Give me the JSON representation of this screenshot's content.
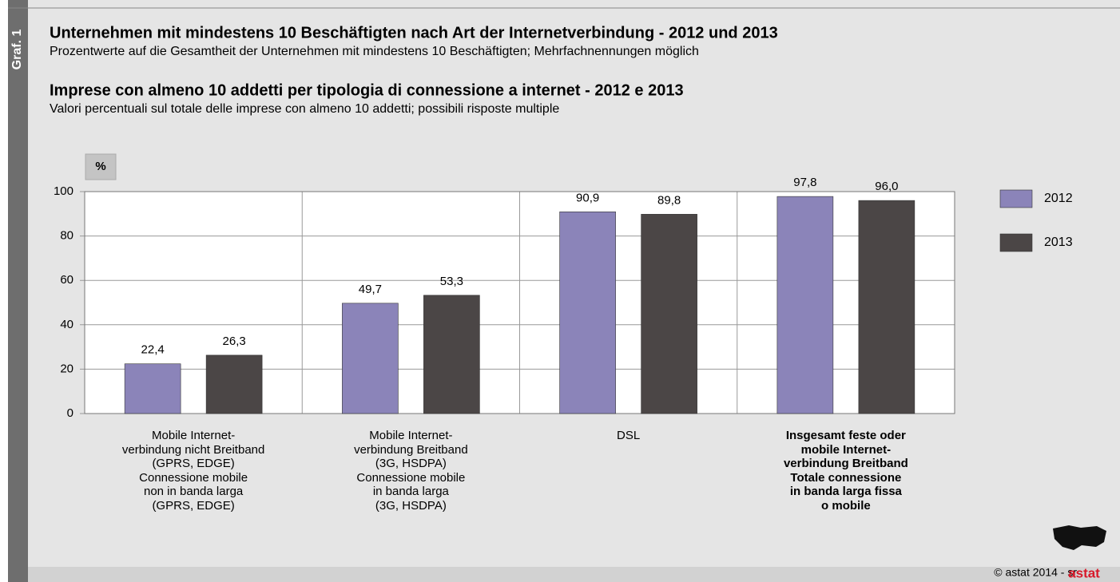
{
  "chart_data": {
    "type": "bar",
    "side_label": "Graf. 1",
    "title": "Unternehmen mit mindestens 10 Beschäftigten nach Art der Internetverbindung - 2012 und 2013",
    "subtitle": "Prozentwerte auf die Gesamtheit der Unternehmen mit mindestens 10 Beschäftigten; Mehrfachnennungen möglich",
    "title2": "Imprese con almeno 10 addetti per tipologia di connessione a internet - 2012 e 2013",
    "subtitle2": "Valori percentuali sul totale delle imprese con almeno 10 addetti; possibili risposte multiple",
    "y_unit": "%",
    "categories": [
      "Mobile Internet-\nverbindung nicht Breitband\n(GPRS, EDGE)\nConnessione mobile\nnon in banda larga\n(GPRS, EDGE)",
      "Mobile Internet-\nverbindung Breitband\n(3G, HSDPA)\nConnessione mobile\nin banda larga\n(3G, HSDPA)",
      "DSL",
      "Insgesamt feste oder\nmobile Internet-\nverbindung Breitband\nTotale connessione\nin banda larga fissa\no mobile"
    ],
    "series": [
      {
        "name": "2012",
        "color": "#8b84b9",
        "values": [
          22.4,
          49.7,
          90.9,
          97.8
        ],
        "value_labels": [
          "22,4",
          "49,7",
          "90,9",
          "97,8"
        ]
      },
      {
        "name": "2013",
        "color": "#4b4646",
        "values": [
          26.3,
          53.3,
          89.8,
          96.0
        ],
        "value_labels": [
          "26,3",
          "53,3",
          "89,8",
          "96,0"
        ]
      }
    ],
    "ylim": [
      0,
      100
    ],
    "yticks": [
      0,
      20,
      40,
      60,
      80,
      100
    ],
    "grid": true,
    "legend": "right",
    "source": "© astat 2014 - sr",
    "logo": "astat"
  }
}
